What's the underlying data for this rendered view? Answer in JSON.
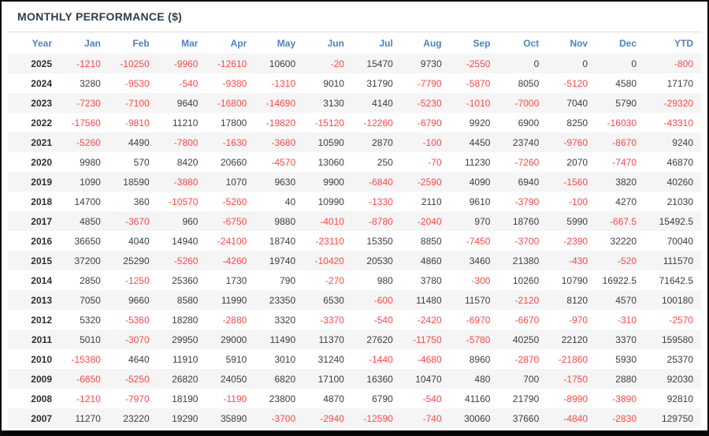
{
  "title": "MONTHLY PERFORMANCE ($)",
  "colors": {
    "header_text": "#4a83c5",
    "negative_value": "#ff4747",
    "positive_value": "#3d3d3d",
    "alt_row_background": "#f5f5f5",
    "title_text": "#2e3d49",
    "bottom_bar": "#050505"
  },
  "table": {
    "columns": [
      "Year",
      "Jan",
      "Feb",
      "Mar",
      "Apr",
      "May",
      "Jun",
      "Jul",
      "Aug",
      "Sep",
      "Oct",
      "Nov",
      "Dec",
      "YTD"
    ],
    "rows": [
      {
        "year": "2025",
        "values": [
          "-1210",
          "-10250",
          "-9960",
          "-12610",
          "10600",
          "-20",
          "15470",
          "9730",
          "-2550",
          "0",
          "0",
          "0",
          "-800"
        ]
      },
      {
        "year": "2024",
        "values": [
          "3280",
          "-9530",
          "-540",
          "-9380",
          "-1310",
          "9010",
          "31790",
          "-7790",
          "-5870",
          "8050",
          "-5120",
          "4580",
          "17170"
        ]
      },
      {
        "year": "2023",
        "values": [
          "-7230",
          "-7100",
          "9640",
          "-16800",
          "-14690",
          "3130",
          "4140",
          "-5230",
          "-1010",
          "-7000",
          "7040",
          "5790",
          "-29320"
        ]
      },
      {
        "year": "2022",
        "values": [
          "-17560",
          "-9810",
          "11210",
          "17800",
          "-19820",
          "-15120",
          "-12260",
          "-6790",
          "9920",
          "6900",
          "8250",
          "-16030",
          "-43310"
        ]
      },
      {
        "year": "2021",
        "values": [
          "-5260",
          "4490",
          "-7800",
          "-1630",
          "-3680",
          "10590",
          "2870",
          "-100",
          "4450",
          "23740",
          "-9760",
          "-8670",
          "9240"
        ]
      },
      {
        "year": "2020",
        "values": [
          "9980",
          "570",
          "8420",
          "20660",
          "-4570",
          "13060",
          "250",
          "-70",
          "11230",
          "-7260",
          "2070",
          "-7470",
          "46870"
        ]
      },
      {
        "year": "2019",
        "values": [
          "1090",
          "18590",
          "-3880",
          "1070",
          "9630",
          "9900",
          "-6840",
          "-2590",
          "4090",
          "6940",
          "-1560",
          "3820",
          "40260"
        ]
      },
      {
        "year": "2018",
        "values": [
          "14700",
          "360",
          "-10570",
          "-5260",
          "40",
          "10990",
          "-1330",
          "2110",
          "9610",
          "-3790",
          "-100",
          "4270",
          "21030"
        ]
      },
      {
        "year": "2017",
        "values": [
          "4850",
          "-3670",
          "960",
          "-6750",
          "9880",
          "-4010",
          "-8780",
          "-2040",
          "970",
          "18760",
          "5990",
          "-667.5",
          "15492.5"
        ]
      },
      {
        "year": "2016",
        "values": [
          "36650",
          "4040",
          "14940",
          "-24100",
          "18740",
          "-23110",
          "15350",
          "8850",
          "-7450",
          "-3700",
          "-2390",
          "32220",
          "70040"
        ]
      },
      {
        "year": "2015",
        "values": [
          "37200",
          "25290",
          "-5260",
          "-4260",
          "19740",
          "-10420",
          "20530",
          "4860",
          "3460",
          "21380",
          "-430",
          "-520",
          "111570"
        ]
      },
      {
        "year": "2014",
        "values": [
          "2850",
          "-1250",
          "25360",
          "1730",
          "790",
          "-270",
          "980",
          "3780",
          "-300",
          "10260",
          "10790",
          "16922.5",
          "71642.5"
        ]
      },
      {
        "year": "2013",
        "values": [
          "7050",
          "9660",
          "8580",
          "11990",
          "23350",
          "6530",
          "-600",
          "11480",
          "11570",
          "-2120",
          "8120",
          "4570",
          "100180"
        ]
      },
      {
        "year": "2012",
        "values": [
          "5320",
          "-5360",
          "18280",
          "-2880",
          "3320",
          "-3370",
          "-540",
          "-2420",
          "-6970",
          "-6670",
          "-970",
          "-310",
          "-2570"
        ]
      },
      {
        "year": "2011",
        "values": [
          "5010",
          "-3070",
          "29950",
          "29000",
          "11490",
          "11370",
          "27620",
          "-11750",
          "-5780",
          "40250",
          "22120",
          "3370",
          "159580"
        ]
      },
      {
        "year": "2010",
        "values": [
          "-15380",
          "4640",
          "11910",
          "5910",
          "3010",
          "31240",
          "-1440",
          "-4680",
          "8960",
          "-2870",
          "-21860",
          "5930",
          "25370"
        ]
      },
      {
        "year": "2009",
        "values": [
          "-6650",
          "-5250",
          "26820",
          "24050",
          "6820",
          "17100",
          "16360",
          "10470",
          "480",
          "700",
          "-1750",
          "2880",
          "92030"
        ]
      },
      {
        "year": "2008",
        "values": [
          "-1210",
          "-7970",
          "18190",
          "-1190",
          "23800",
          "4870",
          "6790",
          "-540",
          "41160",
          "21790",
          "-8990",
          "-3890",
          "92810"
        ]
      },
      {
        "year": "2007",
        "values": [
          "11270",
          "23220",
          "19290",
          "35890",
          "-3700",
          "-2940",
          "-12590",
          "-740",
          "30060",
          "37660",
          "-4840",
          "-2830",
          "129750"
        ]
      }
    ]
  }
}
